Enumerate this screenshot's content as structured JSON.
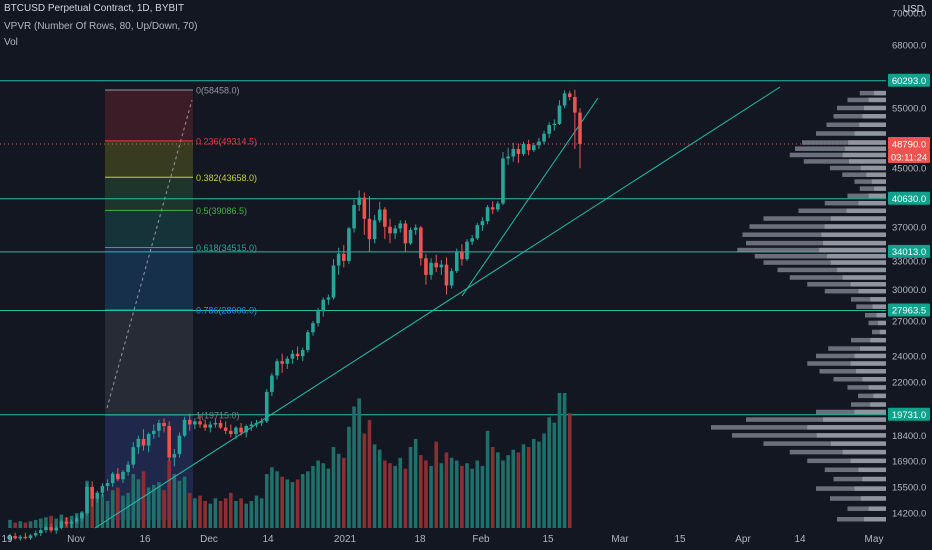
{
  "header": {
    "title": "BTCUSD Perpetual Contract, 1D, BYBIT",
    "indicator": "VPVR (Number Of Rows, 80, Up/Down, 70)",
    "volume_label": "Vol",
    "currency": "USD"
  },
  "colors": {
    "background": "#131722",
    "up": "#26a69a",
    "down": "#ef5350",
    "volume_up": "#1f6f6a",
    "volume_down": "#8c2f35",
    "level_line": "#1fbfa8",
    "trend_line": "#1fbfa8",
    "axis_text": "#b2b5be",
    "vpvr_bar": "#8a8e99",
    "vpvr_bar_light": "#b2b5be"
  },
  "chart_data": {
    "type": "candlestick",
    "price_axis": {
      "min": 13800,
      "max": 72000,
      "scale": "log",
      "ticks": [
        {
          "value": 70000,
          "label": "70000.0"
        },
        {
          "value": 68000,
          "label": "68000.0"
        },
        {
          "value": 55000,
          "label": "55000.0"
        },
        {
          "value": 45000,
          "label": "45000.0"
        },
        {
          "value": 37000,
          "label": "37000.0"
        },
        {
          "value": 33000,
          "label": "33000.0"
        },
        {
          "value": 30000,
          "label": "30000.0"
        },
        {
          "value": 27000,
          "label": "27000.0"
        },
        {
          "value": 24000,
          "label": "24000.0"
        },
        {
          "value": 22000,
          "label": "22000.0"
        },
        {
          "value": 18400,
          "label": "18400.0"
        },
        {
          "value": 16900,
          "label": "16900.0"
        },
        {
          "value": 15500,
          "label": "15500.0"
        },
        {
          "value": 14200,
          "label": "14200.0"
        }
      ]
    },
    "time_axis": {
      "labels": [
        "19",
        "Nov",
        "16",
        "Dec",
        "14",
        "2021",
        "18",
        "Feb",
        "15",
        "Mar",
        "15",
        "Apr",
        "14",
        "May"
      ]
    },
    "price_labels": [
      {
        "value": 60293,
        "label": "60293.0",
        "kind": "level"
      },
      {
        "value": 48790,
        "label": "48790.0",
        "kind": "last"
      },
      {
        "value": 48790,
        "label": "03:11:24",
        "kind": "countdown"
      },
      {
        "value": 40630,
        "label": "40630.0",
        "kind": "level"
      },
      {
        "value": 34013,
        "label": "34013.0",
        "kind": "level"
      },
      {
        "value": 27963.5,
        "label": "27963.5",
        "kind": "level"
      },
      {
        "value": 19731,
        "label": "19731.0",
        "kind": "level"
      }
    ],
    "fibonacci": {
      "high": 58458,
      "low": 19715,
      "levels": [
        {
          "ratio": 0,
          "price": 58458,
          "label": "0(58458.0)",
          "color": "#9598a1"
        },
        {
          "ratio": 0.236,
          "price": 49314.5,
          "label": "0.236(49314.5)",
          "color": "#f23645"
        },
        {
          "ratio": 0.382,
          "price": 43658,
          "label": "0.382(43658.0)",
          "color": "#c8d41e"
        },
        {
          "ratio": 0.5,
          "price": 39086.5,
          "label": "0.5(39086.5)",
          "color": "#4caf50"
        },
        {
          "ratio": 0.618,
          "price": 34515,
          "label": "0.618(34515.0)",
          "color": "#26a69a"
        },
        {
          "ratio": 0.786,
          "price": 28006,
          "label": "0.786(28006.0)",
          "color": "#2196f3"
        },
        {
          "ratio": 1,
          "price": 19715,
          "label": "1(19715.0)",
          "color": "#787b86"
        }
      ]
    },
    "candles": [
      {
        "o": 13000,
        "h": 13250,
        "l": 12900,
        "c": 13150
      },
      {
        "o": 13150,
        "h": 13300,
        "l": 13000,
        "c": 13050
      },
      {
        "o": 13050,
        "h": 13200,
        "l": 12950,
        "c": 13120
      },
      {
        "o": 13120,
        "h": 13300,
        "l": 13000,
        "c": 13060
      },
      {
        "o": 13060,
        "h": 13250,
        "l": 12980,
        "c": 13180
      },
      {
        "o": 13180,
        "h": 13400,
        "l": 13100,
        "c": 13280
      },
      {
        "o": 13280,
        "h": 13500,
        "l": 13150,
        "c": 13420
      },
      {
        "o": 13420,
        "h": 13650,
        "l": 13300,
        "c": 13550
      },
      {
        "o": 13550,
        "h": 13700,
        "l": 13300,
        "c": 13400
      },
      {
        "o": 13400,
        "h": 13600,
        "l": 13250,
        "c": 13520
      },
      {
        "o": 13520,
        "h": 13900,
        "l": 13450,
        "c": 13800
      },
      {
        "o": 13800,
        "h": 14000,
        "l": 13600,
        "c": 13700
      },
      {
        "o": 13700,
        "h": 13900,
        "l": 13500,
        "c": 13800
      },
      {
        "o": 13800,
        "h": 14100,
        "l": 13700,
        "c": 13950
      },
      {
        "o": 13950,
        "h": 14300,
        "l": 13800,
        "c": 14200
      },
      {
        "o": 14200,
        "h": 15700,
        "l": 14100,
        "c": 15500
      },
      {
        "o": 15500,
        "h": 15800,
        "l": 14500,
        "c": 14900
      },
      {
        "o": 14900,
        "h": 15300,
        "l": 14700,
        "c": 15200
      },
      {
        "o": 15200,
        "h": 15700,
        "l": 15000,
        "c": 15550
      },
      {
        "o": 15550,
        "h": 15900,
        "l": 15300,
        "c": 15700
      },
      {
        "o": 15700,
        "h": 16300,
        "l": 15500,
        "c": 16200
      },
      {
        "o": 16200,
        "h": 16500,
        "l": 15800,
        "c": 15900
      },
      {
        "o": 15900,
        "h": 16400,
        "l": 15700,
        "c": 16300
      },
      {
        "o": 16300,
        "h": 16900,
        "l": 16100,
        "c": 16700
      },
      {
        "o": 16700,
        "h": 18000,
        "l": 16500,
        "c": 17700
      },
      {
        "o": 17700,
        "h": 18400,
        "l": 17300,
        "c": 18200
      },
      {
        "o": 18200,
        "h": 18800,
        "l": 17500,
        "c": 17800
      },
      {
        "o": 17800,
        "h": 18600,
        "l": 17400,
        "c": 18500
      },
      {
        "o": 18500,
        "h": 19100,
        "l": 18200,
        "c": 18700
      },
      {
        "o": 18700,
        "h": 19400,
        "l": 18300,
        "c": 19200
      },
      {
        "o": 19200,
        "h": 19500,
        "l": 18600,
        "c": 19000
      },
      {
        "o": 19000,
        "h": 19300,
        "l": 16900,
        "c": 17100
      },
      {
        "o": 17100,
        "h": 17600,
        "l": 16600,
        "c": 17300
      },
      {
        "o": 17300,
        "h": 18600,
        "l": 17100,
        "c": 18400
      },
      {
        "o": 18400,
        "h": 19600,
        "l": 18300,
        "c": 19400
      },
      {
        "o": 19400,
        "h": 19800,
        "l": 18700,
        "c": 19100
      },
      {
        "o": 19100,
        "h": 19500,
        "l": 18800,
        "c": 19300
      },
      {
        "o": 19300,
        "h": 19700,
        "l": 18900,
        "c": 19100
      },
      {
        "o": 19100,
        "h": 19400,
        "l": 18700,
        "c": 18900
      },
      {
        "o": 18900,
        "h": 19300,
        "l": 18600,
        "c": 19100
      },
      {
        "o": 19100,
        "h": 19500,
        "l": 18900,
        "c": 19200
      },
      {
        "o": 19200,
        "h": 19400,
        "l": 18800,
        "c": 18900
      },
      {
        "o": 18900,
        "h": 19300,
        "l": 18500,
        "c": 18700
      },
      {
        "o": 18700,
        "h": 19100,
        "l": 18300,
        "c": 18500
      },
      {
        "o": 18500,
        "h": 19000,
        "l": 18200,
        "c": 18900
      },
      {
        "o": 18900,
        "h": 19200,
        "l": 18400,
        "c": 18600
      },
      {
        "o": 18600,
        "h": 19100,
        "l": 18300,
        "c": 19000
      },
      {
        "o": 19000,
        "h": 19300,
        "l": 18700,
        "c": 19100
      },
      {
        "o": 19100,
        "h": 19400,
        "l": 18900,
        "c": 19200
      },
      {
        "o": 19200,
        "h": 19500,
        "l": 19000,
        "c": 19300
      },
      {
        "o": 19300,
        "h": 21500,
        "l": 19200,
        "c": 21300
      },
      {
        "o": 21300,
        "h": 22700,
        "l": 21000,
        "c": 22500
      },
      {
        "o": 22500,
        "h": 23800,
        "l": 22200,
        "c": 23600
      },
      {
        "o": 23600,
        "h": 24200,
        "l": 22700,
        "c": 23400
      },
      {
        "o": 23400,
        "h": 24000,
        "l": 23000,
        "c": 23800
      },
      {
        "o": 23800,
        "h": 24500,
        "l": 23400,
        "c": 24200
      },
      {
        "o": 24200,
        "h": 24800,
        "l": 23700,
        "c": 24000
      },
      {
        "o": 24000,
        "h": 24700,
        "l": 23600,
        "c": 24500
      },
      {
        "o": 24500,
        "h": 26200,
        "l": 24300,
        "c": 26000
      },
      {
        "o": 26000,
        "h": 27000,
        "l": 25700,
        "c": 26800
      },
      {
        "o": 26800,
        "h": 28200,
        "l": 26500,
        "c": 27900
      },
      {
        "o": 27900,
        "h": 29200,
        "l": 27400,
        "c": 29000
      },
      {
        "o": 29000,
        "h": 29500,
        "l": 28500,
        "c": 29200
      },
      {
        "o": 29200,
        "h": 33200,
        "l": 29000,
        "c": 32500
      },
      {
        "o": 32500,
        "h": 34500,
        "l": 31500,
        "c": 33800
      },
      {
        "o": 33800,
        "h": 34800,
        "l": 32300,
        "c": 33000
      },
      {
        "o": 33000,
        "h": 37000,
        "l": 32700,
        "c": 36800
      },
      {
        "o": 36800,
        "h": 40500,
        "l": 36300,
        "c": 39800
      },
      {
        "o": 39800,
        "h": 41800,
        "l": 39000,
        "c": 40800
      },
      {
        "o": 40800,
        "h": 41500,
        "l": 36000,
        "c": 38000
      },
      {
        "o": 38000,
        "h": 41000,
        "l": 34000,
        "c": 35500
      },
      {
        "o": 35500,
        "h": 38500,
        "l": 35000,
        "c": 37800
      },
      {
        "o": 37800,
        "h": 40200,
        "l": 37500,
        "c": 39200
      },
      {
        "o": 39200,
        "h": 39500,
        "l": 35500,
        "c": 37000
      },
      {
        "o": 37000,
        "h": 38000,
        "l": 35000,
        "c": 36200
      },
      {
        "o": 36200,
        "h": 37200,
        "l": 35500,
        "c": 36800
      },
      {
        "o": 36800,
        "h": 37800,
        "l": 36300,
        "c": 37400
      },
      {
        "o": 37400,
        "h": 37800,
        "l": 34000,
        "c": 35000
      },
      {
        "o": 35000,
        "h": 36900,
        "l": 34800,
        "c": 36600
      },
      {
        "o": 36600,
        "h": 37300,
        "l": 36000,
        "c": 36900
      },
      {
        "o": 36900,
        "h": 37100,
        "l": 32500,
        "c": 33300
      },
      {
        "o": 33300,
        "h": 33800,
        "l": 30500,
        "c": 31500
      },
      {
        "o": 31500,
        "h": 33300,
        "l": 31000,
        "c": 32800
      },
      {
        "o": 32800,
        "h": 33700,
        "l": 31800,
        "c": 32300
      },
      {
        "o": 32300,
        "h": 33100,
        "l": 31500,
        "c": 32600
      },
      {
        "o": 32600,
        "h": 33400,
        "l": 29500,
        "c": 30400
      },
      {
        "o": 30400,
        "h": 32200,
        "l": 30100,
        "c": 31900
      },
      {
        "o": 31900,
        "h": 34400,
        "l": 31700,
        "c": 34000
      },
      {
        "o": 34000,
        "h": 34900,
        "l": 32500,
        "c": 33200
      },
      {
        "o": 33200,
        "h": 35500,
        "l": 33000,
        "c": 35200
      },
      {
        "o": 35200,
        "h": 36000,
        "l": 34800,
        "c": 35600
      },
      {
        "o": 35600,
        "h": 37500,
        "l": 35400,
        "c": 37200
      },
      {
        "o": 37200,
        "h": 38200,
        "l": 36500,
        "c": 37700
      },
      {
        "o": 37700,
        "h": 39800,
        "l": 37300,
        "c": 39500
      },
      {
        "o": 39500,
        "h": 40300,
        "l": 38600,
        "c": 39200
      },
      {
        "o": 39200,
        "h": 40300,
        "l": 38900,
        "c": 40000
      },
      {
        "o": 40000,
        "h": 47500,
        "l": 39800,
        "c": 46500
      },
      {
        "o": 46500,
        "h": 48200,
        "l": 45500,
        "c": 46800
      },
      {
        "o": 46800,
        "h": 49000,
        "l": 46000,
        "c": 48000
      },
      {
        "o": 48000,
        "h": 48900,
        "l": 45800,
        "c": 47200
      },
      {
        "o": 47200,
        "h": 49200,
        "l": 46900,
        "c": 48800
      },
      {
        "o": 48800,
        "h": 49500,
        "l": 47000,
        "c": 47800
      },
      {
        "o": 47800,
        "h": 49000,
        "l": 47500,
        "c": 48600
      },
      {
        "o": 48600,
        "h": 49800,
        "l": 48000,
        "c": 49200
      },
      {
        "o": 49200,
        "h": 51000,
        "l": 48700,
        "c": 50500
      },
      {
        "o": 50500,
        "h": 52500,
        "l": 49800,
        "c": 52000
      },
      {
        "o": 52000,
        "h": 53000,
        "l": 51000,
        "c": 52200
      },
      {
        "o": 52200,
        "h": 56500,
        "l": 52000,
        "c": 55500
      },
      {
        "o": 55500,
        "h": 58400,
        "l": 55000,
        "c": 57800
      },
      {
        "o": 57800,
        "h": 58300,
        "l": 56500,
        "c": 57100
      },
      {
        "o": 57100,
        "h": 58500,
        "l": 48000,
        "c": 54200
      },
      {
        "o": 54200,
        "h": 55000,
        "l": 45000,
        "c": 48800
      }
    ],
    "volumes": [
      0.06,
      0.04,
      0.05,
      0.04,
      0.05,
      0.06,
      0.07,
      0.08,
      0.09,
      0.07,
      0.1,
      0.08,
      0.09,
      0.11,
      0.12,
      0.35,
      0.3,
      0.22,
      0.25,
      0.2,
      0.28,
      0.3,
      0.24,
      0.26,
      0.4,
      0.36,
      0.42,
      0.3,
      0.32,
      0.34,
      0.28,
      0.5,
      0.4,
      0.35,
      0.38,
      0.26,
      0.22,
      0.24,
      0.2,
      0.18,
      0.22,
      0.2,
      0.22,
      0.26,
      0.2,
      0.22,
      0.18,
      0.2,
      0.24,
      0.22,
      0.4,
      0.45,
      0.42,
      0.38,
      0.36,
      0.34,
      0.36,
      0.4,
      0.42,
      0.46,
      0.5,
      0.48,
      0.44,
      0.6,
      0.55,
      0.52,
      0.75,
      0.9,
      0.96,
      0.7,
      0.8,
      0.62,
      0.58,
      0.5,
      0.48,
      0.46,
      0.52,
      0.44,
      0.6,
      0.66,
      0.54,
      0.5,
      0.46,
      0.64,
      0.48,
      0.56,
      0.52,
      0.5,
      0.46,
      0.48,
      0.44,
      0.5,
      0.46,
      0.72,
      0.6,
      0.56,
      0.5,
      0.54,
      0.58,
      0.56,
      0.62,
      0.6,
      0.66,
      0.64,
      0.7,
      0.82,
      0.78,
      1.0,
      1.0,
      0.85
    ],
    "vpvr": [
      {
        "price": 57800,
        "v": 0.15
      },
      {
        "price": 56500,
        "v": 0.22
      },
      {
        "price": 55000,
        "v": 0.28
      },
      {
        "price": 53500,
        "v": 0.3
      },
      {
        "price": 52000,
        "v": 0.34
      },
      {
        "price": 50500,
        "v": 0.4
      },
      {
        "price": 49000,
        "v": 0.48
      },
      {
        "price": 48000,
        "v": 0.52
      },
      {
        "price": 47000,
        "v": 0.55
      },
      {
        "price": 46000,
        "v": 0.47
      },
      {
        "price": 45000,
        "v": 0.32
      },
      {
        "price": 44000,
        "v": 0.25
      },
      {
        "price": 43000,
        "v": 0.18
      },
      {
        "price": 42000,
        "v": 0.15
      },
      {
        "price": 41000,
        "v": 0.22
      },
      {
        "price": 40000,
        "v": 0.35
      },
      {
        "price": 39000,
        "v": 0.5
      },
      {
        "price": 38000,
        "v": 0.7
      },
      {
        "price": 37000,
        "v": 0.78
      },
      {
        "price": 36000,
        "v": 0.82
      },
      {
        "price": 35000,
        "v": 0.8
      },
      {
        "price": 34200,
        "v": 0.85
      },
      {
        "price": 33500,
        "v": 0.75
      },
      {
        "price": 32800,
        "v": 0.7
      },
      {
        "price": 32000,
        "v": 0.62
      },
      {
        "price": 31200,
        "v": 0.55
      },
      {
        "price": 30500,
        "v": 0.45
      },
      {
        "price": 29800,
        "v": 0.35
      },
      {
        "price": 29000,
        "v": 0.2
      },
      {
        "price": 28300,
        "v": 0.17
      },
      {
        "price": 27500,
        "v": 0.12
      },
      {
        "price": 26800,
        "v": 0.1
      },
      {
        "price": 26000,
        "v": 0.08
      },
      {
        "price": 25300,
        "v": 0.2
      },
      {
        "price": 24600,
        "v": 0.33
      },
      {
        "price": 24000,
        "v": 0.4
      },
      {
        "price": 23400,
        "v": 0.45
      },
      {
        "price": 22800,
        "v": 0.38
      },
      {
        "price": 22200,
        "v": 0.3
      },
      {
        "price": 21600,
        "v": 0.22
      },
      {
        "price": 21000,
        "v": 0.16
      },
      {
        "price": 20400,
        "v": 0.2
      },
      {
        "price": 19900,
        "v": 0.4
      },
      {
        "price": 19400,
        "v": 0.8
      },
      {
        "price": 18900,
        "v": 1.0
      },
      {
        "price": 18400,
        "v": 0.88
      },
      {
        "price": 17900,
        "v": 0.7
      },
      {
        "price": 17400,
        "v": 0.55
      },
      {
        "price": 16900,
        "v": 0.45
      },
      {
        "price": 16400,
        "v": 0.35
      },
      {
        "price": 15900,
        "v": 0.3
      },
      {
        "price": 15400,
        "v": 0.4
      },
      {
        "price": 14900,
        "v": 0.32
      },
      {
        "price": 14400,
        "v": 0.22
      },
      {
        "price": 13900,
        "v": 0.28
      }
    ]
  }
}
